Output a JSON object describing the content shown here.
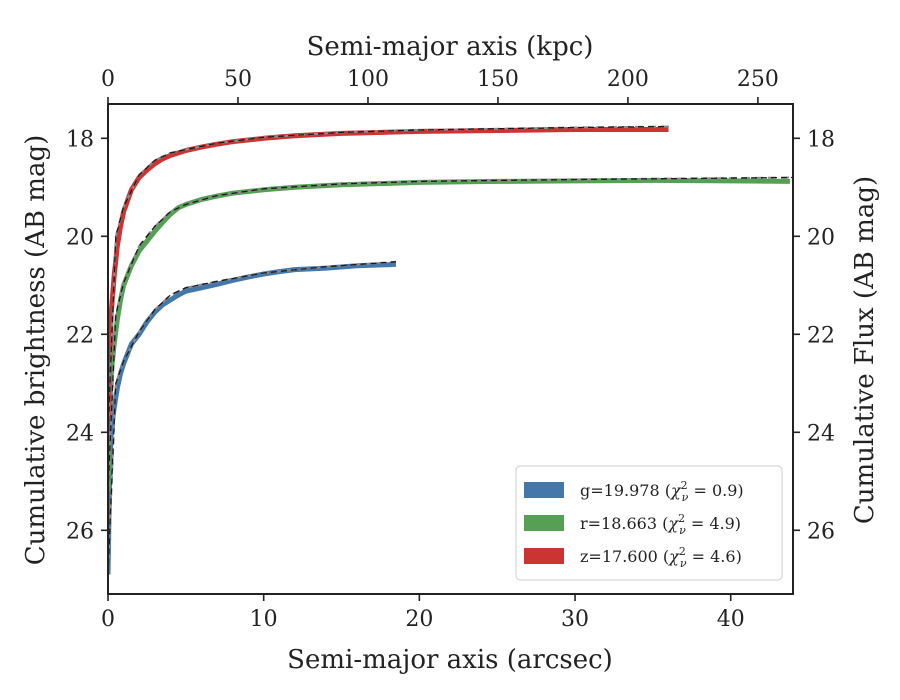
{
  "chart_data": {
    "type": "line",
    "xlabel": "Semi-major axis (arcsec)",
    "ylabel": "Cumulative brightness (AB mag)",
    "ylabel_right": "Cumulative Flux (AB mag)",
    "xlabel_top": "Semi-major axis (kpc)",
    "xlim": [
      0,
      44
    ],
    "ylim": [
      27.3,
      17.3
    ],
    "x_ticks": [
      "0",
      "10",
      "20",
      "30",
      "40"
    ],
    "y_ticks": [
      "18",
      "20",
      "22",
      "24",
      "26"
    ],
    "top_x_lim": [
      0,
      263.5
    ],
    "top_x_ticks": [
      "0",
      "50",
      "100",
      "150",
      "200",
      "250"
    ],
    "legend_position": "lower-right",
    "grid": false,
    "series": [
      {
        "name": "g=19.978 (χ²ᵥ = 0.9)",
        "band": "g",
        "mag": "19.978",
        "chi2": "0.9",
        "color": "#4477aa",
        "x": [
          0.0,
          0.1,
          0.2,
          0.4,
          0.6,
          0.8,
          1.0,
          1.5,
          2.0,
          2.5,
          3.0,
          3.5,
          4.0,
          4.5,
          5.0,
          6.0,
          7.0,
          8.0,
          9.0,
          10.0,
          11.0,
          12.0,
          14.0,
          16.0,
          18.0,
          18.5
        ],
        "y": [
          26.9,
          25.0,
          24.0,
          23.5,
          23.1,
          22.8,
          22.6,
          22.2,
          22.0,
          21.75,
          21.55,
          21.4,
          21.3,
          21.2,
          21.12,
          21.05,
          20.98,
          20.9,
          20.83,
          20.77,
          20.72,
          20.68,
          20.65,
          20.6,
          20.58,
          20.57
        ]
      },
      {
        "name": "r=18.663 (χ²ᵥ = 4.9)",
        "band": "r",
        "mag": "18.663",
        "chi2": "4.9",
        "color": "#55a055",
        "x": [
          0.0,
          0.1,
          0.2,
          0.4,
          0.6,
          0.8,
          1.0,
          1.5,
          2.0,
          2.5,
          3.0,
          3.5,
          4.0,
          4.5,
          5.0,
          6.0,
          7.0,
          8.0,
          10.0,
          12.0,
          15.0,
          20.0,
          25.0,
          30.0,
          35.0,
          40.0,
          43.8
        ],
        "y": [
          25.2,
          23.5,
          22.8,
          22.2,
          21.7,
          21.3,
          21.0,
          20.6,
          20.3,
          20.1,
          19.9,
          19.72,
          19.55,
          19.42,
          19.35,
          19.25,
          19.18,
          19.12,
          19.05,
          19.0,
          18.95,
          18.9,
          18.88,
          18.87,
          18.86,
          18.87,
          18.88
        ]
      },
      {
        "name": "z=17.600 (χ²ᵥ = 4.6)",
        "band": "z",
        "mag": "17.600",
        "chi2": "4.6",
        "color": "#cc3333",
        "x": [
          0.0,
          0.1,
          0.2,
          0.4,
          0.6,
          0.8,
          1.0,
          1.5,
          2.0,
          2.5,
          3.0,
          3.5,
          4.0,
          4.5,
          5.0,
          6.0,
          7.0,
          8.0,
          10.0,
          12.0,
          15.0,
          20.0,
          25.0,
          30.0,
          36.0
        ],
        "y": [
          24.0,
          22.5,
          21.6,
          20.8,
          20.2,
          19.8,
          19.5,
          19.05,
          18.8,
          18.65,
          18.52,
          18.42,
          18.35,
          18.3,
          18.25,
          18.18,
          18.12,
          18.07,
          18.0,
          17.95,
          17.9,
          17.86,
          17.84,
          17.82,
          17.82
        ]
      }
    ],
    "fits": [
      {
        "band": "g",
        "x": [
          0.0,
          0.5,
          1.0,
          2.0,
          3.0,
          4.0,
          5.0,
          7.0,
          10.0,
          14.0,
          18.5
        ],
        "y": [
          26.9,
          23.0,
          22.55,
          21.95,
          21.5,
          21.2,
          21.05,
          20.92,
          20.75,
          20.62,
          20.52
        ]
      },
      {
        "band": "r",
        "x": [
          0.0,
          0.5,
          1.0,
          2.0,
          3.0,
          4.0,
          5.0,
          7.0,
          10.0,
          15.0,
          20.0,
          30.0,
          44.0
        ],
        "y": [
          25.2,
          21.6,
          20.95,
          20.2,
          19.8,
          19.5,
          19.35,
          19.17,
          19.03,
          18.93,
          18.88,
          18.84,
          18.8
        ]
      },
      {
        "band": "z",
        "x": [
          0.0,
          0.5,
          1.0,
          2.0,
          3.0,
          4.0,
          5.0,
          7.0,
          10.0,
          15.0,
          20.0,
          30.0,
          36.0
        ],
        "y": [
          24.0,
          20.0,
          19.4,
          18.75,
          18.45,
          18.3,
          18.23,
          18.1,
          17.98,
          17.88,
          17.83,
          17.78,
          17.76
        ]
      }
    ]
  }
}
